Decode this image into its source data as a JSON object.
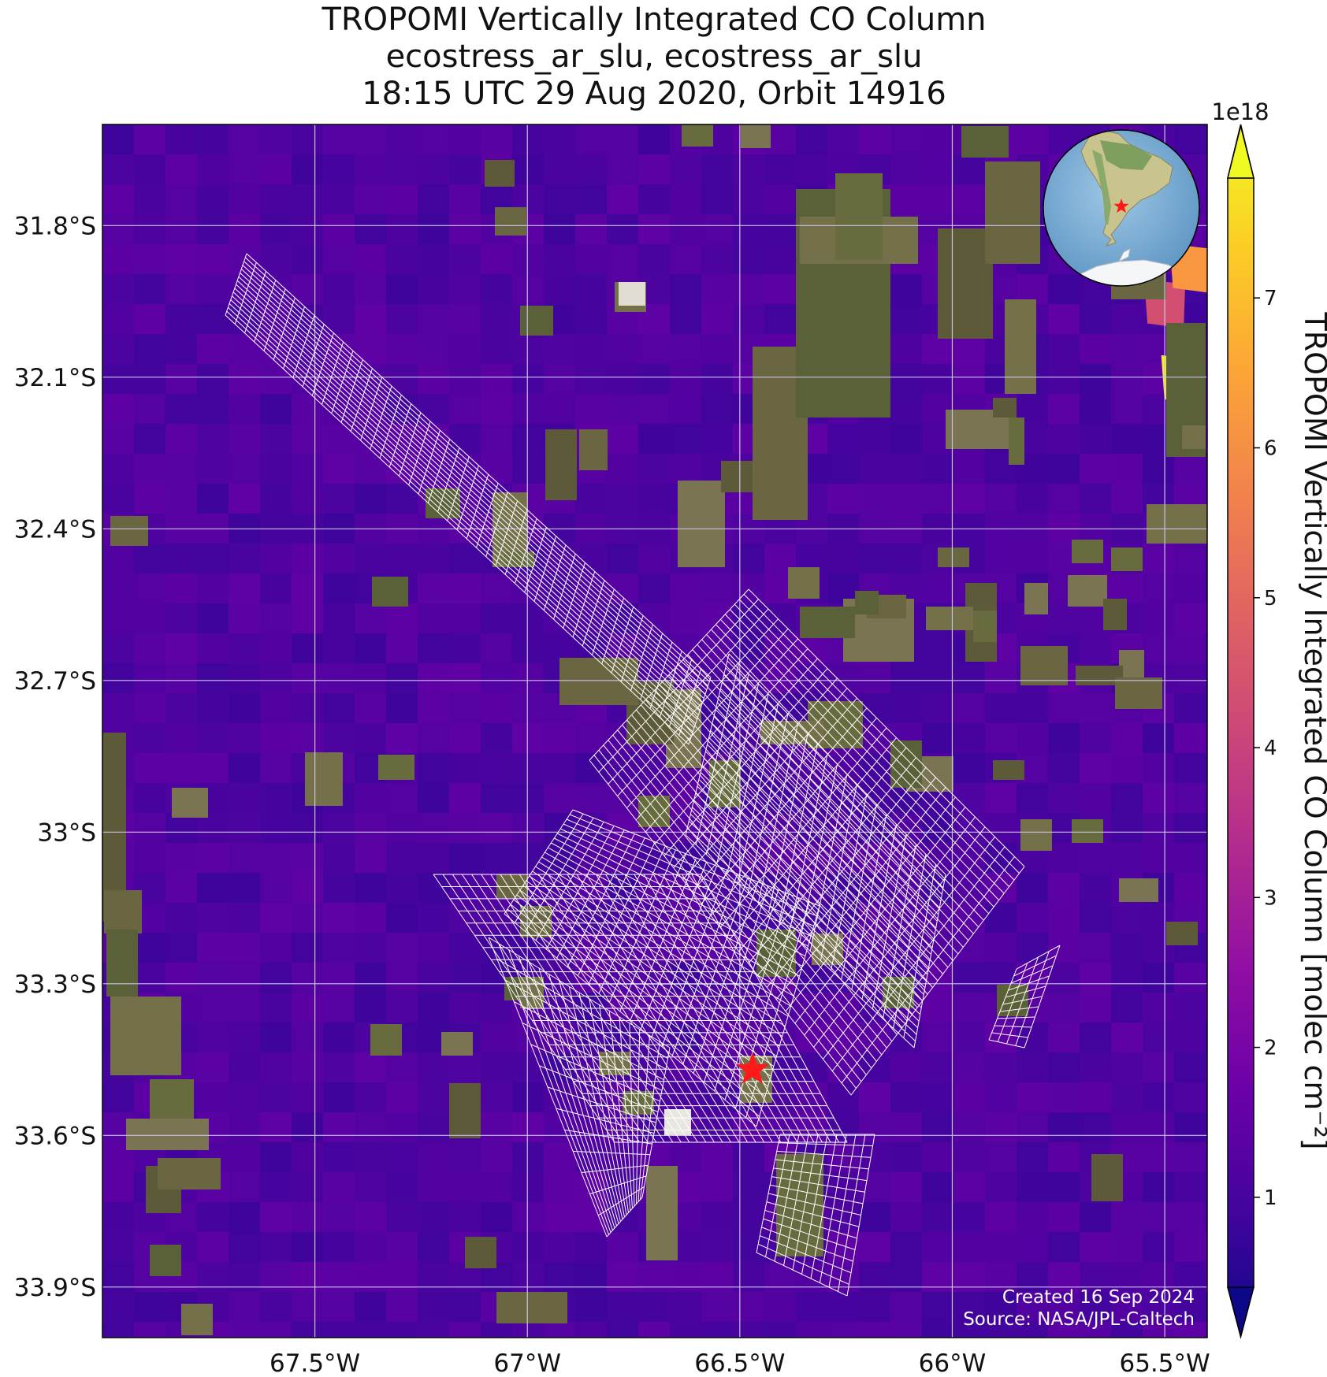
{
  "title": {
    "line1": "TROPOMI Vertically Integrated CO Column",
    "line2": "ecostress_ar_slu, ecostress_ar_slu",
    "line3": "18:15 UTC 29 Aug 2020, Orbit 14916"
  },
  "map": {
    "lon_range": [
      -68.0,
      -65.4
    ],
    "lat_range": [
      -34.0,
      -31.6
    ],
    "lon_ticks": [
      {
        "value": -67.5,
        "label": "67.5°W"
      },
      {
        "value": -67.0,
        "label": "67°W"
      },
      {
        "value": -66.5,
        "label": "66.5°W"
      },
      {
        "value": -66.0,
        "label": "66°W"
      },
      {
        "value": -65.5,
        "label": "65.5°W"
      }
    ],
    "lat_ticks": [
      {
        "value": -31.8,
        "label": "31.8°S"
      },
      {
        "value": -32.1,
        "label": "32.1°S"
      },
      {
        "value": -32.4,
        "label": "32.4°S"
      },
      {
        "value": -32.7,
        "label": "32.7°S"
      },
      {
        "value": -33.0,
        "label": "33°S"
      },
      {
        "value": -33.3,
        "label": "33.3°S"
      },
      {
        "value": -33.6,
        "label": "33.6°S"
      },
      {
        "value": -33.9,
        "label": "33.9°S"
      }
    ],
    "target_marker": {
      "lon": -66.47,
      "lat": -33.47,
      "color": "#ff1a1a"
    },
    "background_color": "#4a12b0",
    "swath_line_color": "#ffffff",
    "credit_line1": "Created 16 Sep 2024",
    "credit_line2": "Source: NASA/JPL-Caltech"
  },
  "colorbar": {
    "label": "TROPOMI Vertically Integrated CO Column [molec cm⁻²]",
    "exponent": "1e18",
    "range": [
      0.4,
      7.8
    ],
    "colormap": "plasma",
    "ticks": [
      {
        "value": 1,
        "label": "1"
      },
      {
        "value": 2,
        "label": "2"
      },
      {
        "value": 3,
        "label": "3"
      },
      {
        "value": 4,
        "label": "4"
      },
      {
        "value": 5,
        "label": "5"
      },
      {
        "value": 6,
        "label": "6"
      },
      {
        "value": 7,
        "label": "7"
      }
    ],
    "extend": "both"
  },
  "inset": {
    "name": "South America globe locator",
    "marker_color": "#ff1a1a"
  },
  "chart_data": {
    "type": "heatmap",
    "title": "TROPOMI Vertically Integrated CO Column",
    "xlabel": "",
    "ylabel": "",
    "xlim": [
      -68.0,
      -65.4
    ],
    "ylim": [
      -34.0,
      -31.6
    ],
    "colorbar_label": "TROPOMI Vertically Integrated CO Column [molec cm⁻²]",
    "colorbar_range": [
      4e+17,
      7.8e+18
    ],
    "grid": true,
    "notable_values": [
      {
        "lon": -65.46,
        "lat": -32.1,
        "value": 7.6e+18
      },
      {
        "lon": -65.5,
        "lat": -31.95,
        "value": 4.3e+18
      },
      {
        "lon": -65.44,
        "lat": -31.88,
        "value": 6e+18
      }
    ],
    "typical_value": 1.4e+18
  }
}
